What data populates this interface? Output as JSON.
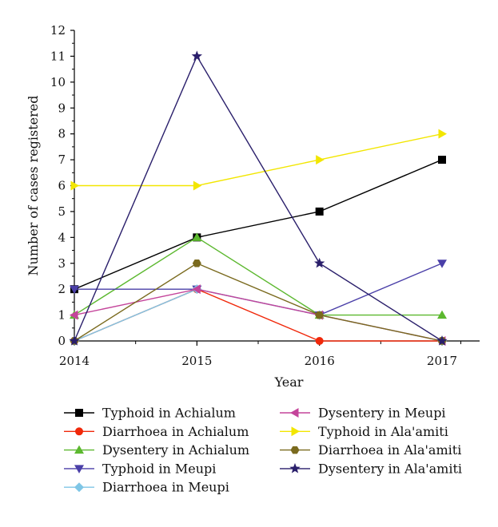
{
  "chart_data": {
    "type": "line",
    "x": [
      2014,
      2015,
      2016,
      2017
    ],
    "xlabel": "Year",
    "ylabel": "Number of cases registered",
    "ylim": [
      0,
      12
    ],
    "yticks": [
      0,
      1,
      2,
      3,
      4,
      5,
      6,
      7,
      8,
      9,
      10,
      11,
      12
    ],
    "grid": false,
    "legend_position": "bottom",
    "series": [
      {
        "name": "Typhoid in Achialum",
        "values": [
          2,
          4,
          5,
          7
        ],
        "color": "#000000",
        "marker": "square"
      },
      {
        "name": "Diarrhoea in Achialum",
        "values": [
          0,
          2,
          0,
          0
        ],
        "color": "#f0280a",
        "marker": "circle"
      },
      {
        "name": "Dysentery in Achialum",
        "values": [
          1,
          4,
          1,
          1
        ],
        "color": "#5cb82f",
        "marker": "triangle-up"
      },
      {
        "name": "Typhoid in Meupi",
        "values": [
          2,
          2,
          1,
          3
        ],
        "color": "#4a3fa8",
        "marker": "triangle-down"
      },
      {
        "name": "Diarrhoea in Meupi",
        "values": [
          0,
          2,
          1,
          0
        ],
        "color": "#7fc6e6",
        "marker": "diamond"
      },
      {
        "name": "Dysentery in Meupi",
        "values": [
          1,
          2,
          1,
          0
        ],
        "color": "#c4449a",
        "marker": "triangle-left"
      },
      {
        "name": "Typhoid in Ala'amiti",
        "values": [
          6,
          6,
          7,
          8
        ],
        "color": "#f2e600",
        "marker": "triangle-right"
      },
      {
        "name": "Diarrhoea in Ala'amiti",
        "values": [
          0,
          3,
          1,
          0
        ],
        "color": "#7a6a1e",
        "marker": "hexagon"
      },
      {
        "name": "Dysentery in Ala'amiti",
        "values": [
          0,
          11,
          3,
          0
        ],
        "color": "#2a1f6b",
        "marker": "star"
      }
    ]
  }
}
